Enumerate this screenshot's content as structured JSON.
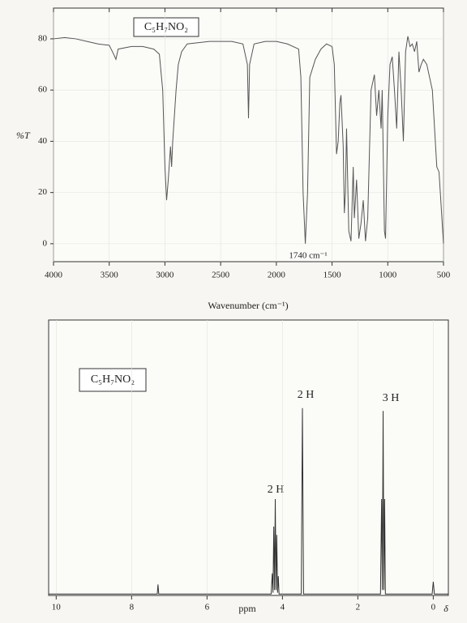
{
  "chart_data": [
    {
      "type": "line",
      "title": "C₅H₇NO₂",
      "x_label": "Wavenumber (cm⁻¹)",
      "y_label": "%T",
      "annotation": "1740 cm⁻¹",
      "x": [
        4000,
        3900,
        3800,
        3700,
        3600,
        3500,
        3460,
        3440,
        3420,
        3300,
        3200,
        3100,
        3050,
        3020,
        3000,
        2985,
        2970,
        2950,
        2940,
        2930,
        2900,
        2880,
        2850,
        2800,
        2600,
        2400,
        2300,
        2260,
        2250,
        2240,
        2200,
        2100,
        2000,
        1900,
        1800,
        1780,
        1760,
        1740,
        1720,
        1700,
        1650,
        1600,
        1550,
        1500,
        1480,
        1460,
        1445,
        1430,
        1420,
        1400,
        1390,
        1380,
        1370,
        1350,
        1330,
        1310,
        1300,
        1280,
        1260,
        1240,
        1220,
        1200,
        1180,
        1150,
        1120,
        1100,
        1080,
        1060,
        1050,
        1030,
        1020,
        1000,
        980,
        960,
        940,
        920,
        900,
        880,
        860,
        840,
        820,
        800,
        780,
        760,
        740,
        720,
        700,
        680,
        650,
        600,
        560,
        540,
        500
      ],
      "values": [
        80,
        80.5,
        80,
        79,
        78,
        77.5,
        74,
        72,
        76,
        77,
        77,
        76,
        74,
        60,
        30,
        17,
        25,
        38,
        30,
        40,
        60,
        70,
        75,
        78,
        79,
        79,
        78,
        70,
        49,
        70,
        78,
        79,
        79,
        78,
        76,
        65,
        20,
        0,
        20,
        65,
        72,
        76,
        78,
        77,
        70,
        35,
        40,
        55,
        58,
        38,
        12,
        20,
        45,
        5,
        1,
        30,
        10,
        25,
        2,
        8,
        17,
        1,
        10,
        60,
        66,
        50,
        60,
        45,
        60,
        5,
        2,
        50,
        70,
        73,
        60,
        45,
        75,
        60,
        40,
        75,
        81,
        77,
        78,
        75,
        79,
        67,
        70,
        72,
        70,
        60,
        30,
        28,
        0
      ],
      "color": "#555555",
      "xlim": [
        4000,
        500
      ],
      "xticks": [
        4000,
        3500,
        3000,
        2500,
        2000,
        1500,
        1000,
        500
      ],
      "ylim": [
        -7,
        92
      ],
      "yticks": [
        0,
        20,
        40,
        60,
        80
      ],
      "grid": true
    },
    {
      "type": "line",
      "title": "C₅H₇NO₂",
      "x_label": "ppm",
      "x_symbol": "δ",
      "annotations": [
        "2 H",
        "2 H",
        "3 H"
      ],
      "x": [
        10.2,
        7.32,
        7.3,
        7.28,
        4.3,
        4.27,
        4.25,
        4.23,
        4.21,
        4.19,
        4.17,
        4.15,
        4.13,
        4.11,
        4.09,
        3.5,
        3.47,
        3.44,
        1.4,
        1.37,
        1.35,
        1.33,
        1.31,
        1.29,
        1.27,
        0.03,
        0,
        -0.03,
        -0.4
      ],
      "values": [
        0.5,
        0.5,
        4,
        0.5,
        0.5,
        8,
        1,
        25,
        2,
        35,
        2,
        22,
        1,
        7,
        0.5,
        0.5,
        68,
        0.5,
        0.5,
        35,
        2,
        67,
        2,
        35,
        0.5,
        0.5,
        5,
        0.5,
        0.5
      ],
      "color": "#333333",
      "xlim": [
        10.2,
        -0.4
      ],
      "xticks": [
        10,
        8,
        6,
        4,
        2,
        0
      ],
      "ylim": [
        0,
        100
      ],
      "grid": true
    }
  ]
}
